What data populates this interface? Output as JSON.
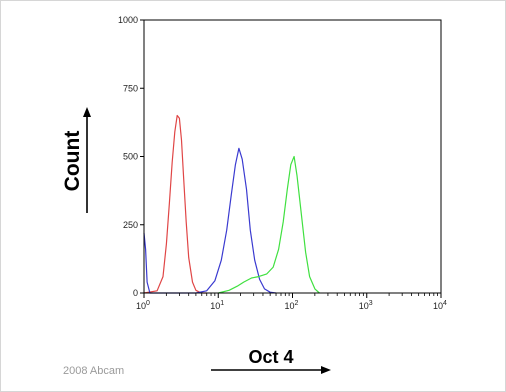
{
  "chart_data": {
    "type": "line",
    "xlabel": "Oct 4",
    "ylabel": "Count",
    "x_scale": "log",
    "xlim": [
      1,
      10000
    ],
    "ylim": [
      0,
      1000
    ],
    "x_ticks": [
      {
        "value": 1,
        "base": "10",
        "exp": "0"
      },
      {
        "value": 10,
        "base": "10",
        "exp": "1"
      },
      {
        "value": 100,
        "base": "10",
        "exp": "2"
      },
      {
        "value": 1000,
        "base": "10",
        "exp": "3"
      },
      {
        "value": 10000,
        "base": "10",
        "exp": "4"
      }
    ],
    "y_ticks": [
      "0",
      "250",
      "500",
      "750",
      "1000"
    ],
    "grid": false,
    "legend": "none",
    "series": [
      {
        "color": "#e04646",
        "x": [
          1.0,
          1.5,
          1.8,
          2.0,
          2.2,
          2.4,
          2.6,
          2.8,
          3.0,
          3.2,
          3.4,
          3.7,
          4.0,
          4.5,
          5.0,
          5.6,
          6.3,
          7.0
        ],
        "y": [
          0,
          8,
          60,
          180,
          330,
          480,
          590,
          650,
          640,
          560,
          430,
          260,
          130,
          40,
          10,
          3,
          0,
          0
        ]
      },
      {
        "color": "#3a3ad0",
        "x": [
          1.0,
          1.05,
          1.1,
          1.2,
          5.0,
          7.0,
          9.0,
          11.0,
          13.0,
          15.0,
          17.0,
          19.0,
          21.0,
          24.0,
          27.0,
          31.0,
          36.0,
          42.0,
          50.0,
          60.0
        ],
        "y": [
          220,
          160,
          40,
          0,
          0,
          8,
          45,
          120,
          230,
          360,
          470,
          530,
          490,
          380,
          230,
          120,
          50,
          15,
          3,
          0
        ]
      },
      {
        "color": "#40e040",
        "x": [
          10,
          14,
          18,
          22,
          28,
          35,
          45,
          55,
          65,
          75,
          85,
          95,
          105,
          115,
          130,
          150,
          170,
          200,
          230
        ],
        "y": [
          0,
          10,
          25,
          40,
          55,
          60,
          70,
          95,
          160,
          260,
          380,
          470,
          500,
          430,
          300,
          150,
          60,
          15,
          0
        ]
      }
    ]
  },
  "annotations": {
    "credit": "2008 Abcam"
  }
}
